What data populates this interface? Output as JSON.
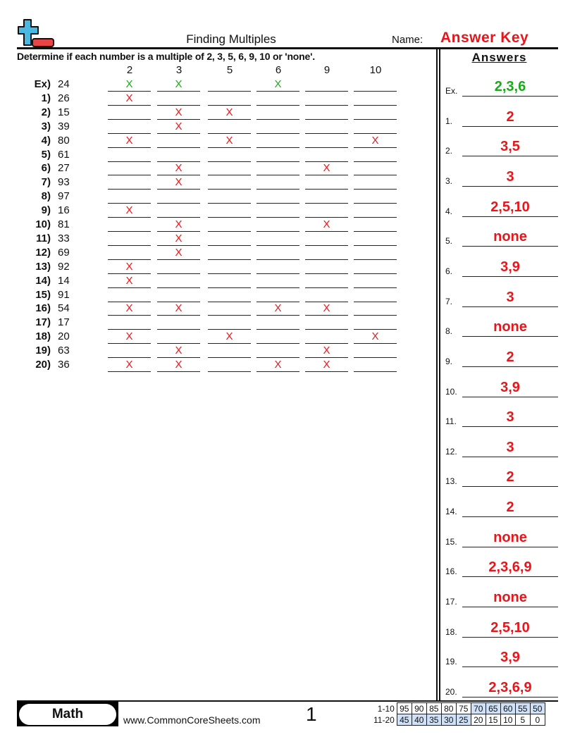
{
  "header": {
    "title": "Finding Multiples",
    "name_label": "Name:",
    "name_value": "Answer Key",
    "logo": "plus-minus-logo"
  },
  "instructions": "Determine if each number is a multiple of 2, 3, 5, 6, 9, 10 or 'none'.",
  "columns": [
    "2",
    "3",
    "5",
    "6",
    "9",
    "10"
  ],
  "mark": "X",
  "colors": {
    "answer": "#e8161b",
    "example": "#1aaa1a",
    "highlight": "#cfe0f7"
  },
  "rows": [
    {
      "label": "Ex)",
      "number": "24",
      "marks": [
        "2",
        "3",
        "6"
      ]
    },
    {
      "label": "1)",
      "number": "26",
      "marks": [
        "2"
      ]
    },
    {
      "label": "2)",
      "number": "15",
      "marks": [
        "3",
        "5"
      ]
    },
    {
      "label": "3)",
      "number": "39",
      "marks": [
        "3"
      ]
    },
    {
      "label": "4)",
      "number": "80",
      "marks": [
        "2",
        "5",
        "10"
      ]
    },
    {
      "label": "5)",
      "number": "61",
      "marks": []
    },
    {
      "label": "6)",
      "number": "27",
      "marks": [
        "3",
        "9"
      ]
    },
    {
      "label": "7)",
      "number": "93",
      "marks": [
        "3"
      ]
    },
    {
      "label": "8)",
      "number": "97",
      "marks": []
    },
    {
      "label": "9)",
      "number": "16",
      "marks": [
        "2"
      ]
    },
    {
      "label": "10)",
      "number": "81",
      "marks": [
        "3",
        "9"
      ]
    },
    {
      "label": "11)",
      "number": "33",
      "marks": [
        "3"
      ]
    },
    {
      "label": "12)",
      "number": "69",
      "marks": [
        "3"
      ]
    },
    {
      "label": "13)",
      "number": "92",
      "marks": [
        "2"
      ]
    },
    {
      "label": "14)",
      "number": "14",
      "marks": [
        "2"
      ]
    },
    {
      "label": "15)",
      "number": "91",
      "marks": []
    },
    {
      "label": "16)",
      "number": "54",
      "marks": [
        "2",
        "3",
        "6",
        "9"
      ]
    },
    {
      "label": "17)",
      "number": "17",
      "marks": []
    },
    {
      "label": "18)",
      "number": "20",
      "marks": [
        "2",
        "5",
        "10"
      ]
    },
    {
      "label": "19)",
      "number": "63",
      "marks": [
        "3",
        "9"
      ]
    },
    {
      "label": "20)",
      "number": "36",
      "marks": [
        "2",
        "3",
        "6",
        "9"
      ]
    }
  ],
  "answers": {
    "heading": "Answers",
    "items": [
      {
        "label": "Ex.",
        "value": "2,3,6"
      },
      {
        "label": "1.",
        "value": "2"
      },
      {
        "label": "2.",
        "value": "3,5"
      },
      {
        "label": "3.",
        "value": "3"
      },
      {
        "label": "4.",
        "value": "2,5,10"
      },
      {
        "label": "5.",
        "value": "none"
      },
      {
        "label": "6.",
        "value": "3,9"
      },
      {
        "label": "7.",
        "value": "3"
      },
      {
        "label": "8.",
        "value": "none"
      },
      {
        "label": "9.",
        "value": "2"
      },
      {
        "label": "10.",
        "value": "3,9"
      },
      {
        "label": "11.",
        "value": "3"
      },
      {
        "label": "12.",
        "value": "3"
      },
      {
        "label": "13.",
        "value": "2"
      },
      {
        "label": "14.",
        "value": "2"
      },
      {
        "label": "15.",
        "value": "none"
      },
      {
        "label": "16.",
        "value": "2,3,6,9"
      },
      {
        "label": "17.",
        "value": "none"
      },
      {
        "label": "18.",
        "value": "2,5,10"
      },
      {
        "label": "19.",
        "value": "3,9"
      },
      {
        "label": "20.",
        "value": "2,3,6,9"
      }
    ]
  },
  "footer": {
    "subject": "Math",
    "site": "www.CommonCoreSheets.com",
    "page": "1",
    "score": [
      {
        "label": "1-10",
        "values": [
          "95",
          "90",
          "85",
          "80",
          "75",
          "70",
          "65",
          "60",
          "55",
          "50"
        ],
        "highlight": [
          false,
          false,
          false,
          false,
          false,
          true,
          true,
          true,
          true,
          true
        ]
      },
      {
        "label": "11-20",
        "values": [
          "45",
          "40",
          "35",
          "30",
          "25",
          "20",
          "15",
          "10",
          "5",
          "0"
        ],
        "highlight": [
          true,
          true,
          true,
          true,
          true,
          false,
          false,
          false,
          false,
          false
        ]
      }
    ]
  }
}
